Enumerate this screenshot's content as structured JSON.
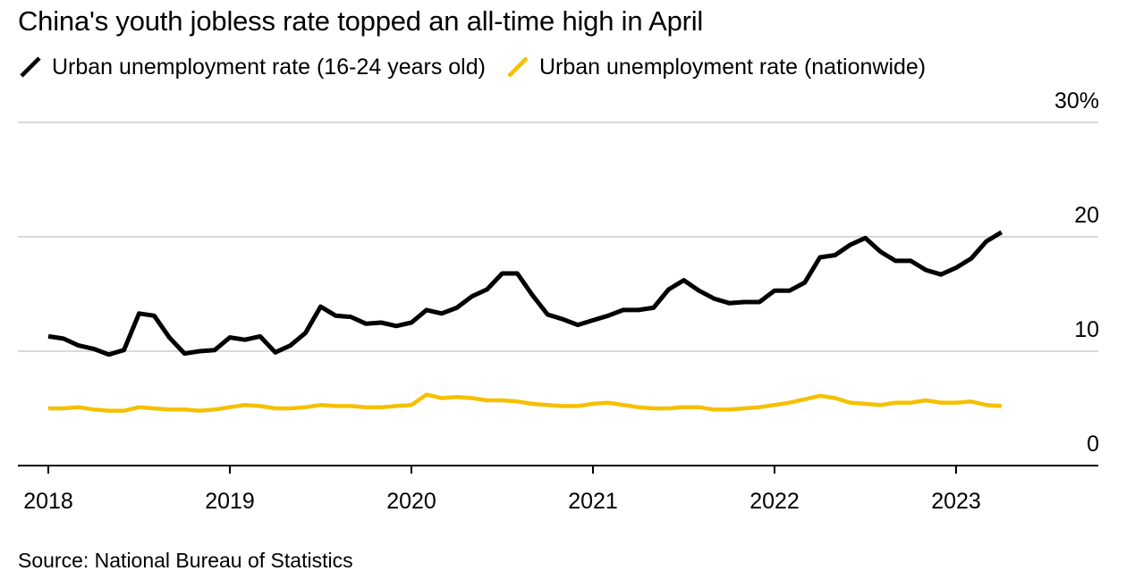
{
  "title": "China's youth jobless rate topped an all-time high in April",
  "source": "Source: National Bureau of Statistics",
  "chart_data": {
    "type": "line",
    "title": "China's youth jobless rate topped an all-time high in April",
    "xlabel": "",
    "ylabel": "",
    "ylim": [
      0,
      30
    ],
    "yticks": [
      {
        "value": 0,
        "label": "0"
      },
      {
        "value": 10,
        "label": "10"
      },
      {
        "value": 20,
        "label": "20"
      },
      {
        "value": 30,
        "label": "30%"
      }
    ],
    "xticks": [
      "2018",
      "2019",
      "2020",
      "2021",
      "2022",
      "2023"
    ],
    "grid": true,
    "legend_position": "top-left",
    "x_start": "2018-01",
    "x_end": "2023-04",
    "series": [
      {
        "name": "Urban unemployment rate (16-24 years old)",
        "color": "#000000",
        "values": [
          11.3,
          11.1,
          10.5,
          10.2,
          9.7,
          10.1,
          13.3,
          13.1,
          11.2,
          9.8,
          10.0,
          10.1,
          11.2,
          11.0,
          11.3,
          9.9,
          10.5,
          11.6,
          13.9,
          13.1,
          13.0,
          12.4,
          12.5,
          12.2,
          12.5,
          13.6,
          13.3,
          13.8,
          14.8,
          15.4,
          16.8,
          16.8,
          14.9,
          13.2,
          12.8,
          12.3,
          12.7,
          13.1,
          13.6,
          13.6,
          13.8,
          15.4,
          16.2,
          15.3,
          14.6,
          14.2,
          14.3,
          14.3,
          15.3,
          15.3,
          16.0,
          18.2,
          18.4,
          19.3,
          19.9,
          18.7,
          17.9,
          17.9,
          17.1,
          16.7,
          17.3,
          18.1,
          19.6,
          20.4
        ]
      },
      {
        "name": "Urban unemployment rate (nationwide)",
        "color": "#f5c000",
        "values": [
          5.0,
          5.0,
          5.1,
          4.9,
          4.8,
          4.8,
          5.1,
          5.0,
          4.9,
          4.9,
          4.8,
          4.9,
          5.1,
          5.3,
          5.2,
          5.0,
          5.0,
          5.1,
          5.3,
          5.2,
          5.2,
          5.1,
          5.1,
          5.2,
          5.3,
          6.2,
          5.9,
          6.0,
          5.9,
          5.7,
          5.7,
          5.6,
          5.4,
          5.3,
          5.2,
          5.2,
          5.4,
          5.5,
          5.3,
          5.1,
          5.0,
          5.0,
          5.1,
          5.1,
          4.9,
          4.9,
          5.0,
          5.1,
          5.3,
          5.5,
          5.8,
          6.1,
          5.9,
          5.5,
          5.4,
          5.3,
          5.5,
          5.5,
          5.7,
          5.5,
          5.5,
          5.6,
          5.3,
          5.2
        ]
      }
    ]
  }
}
